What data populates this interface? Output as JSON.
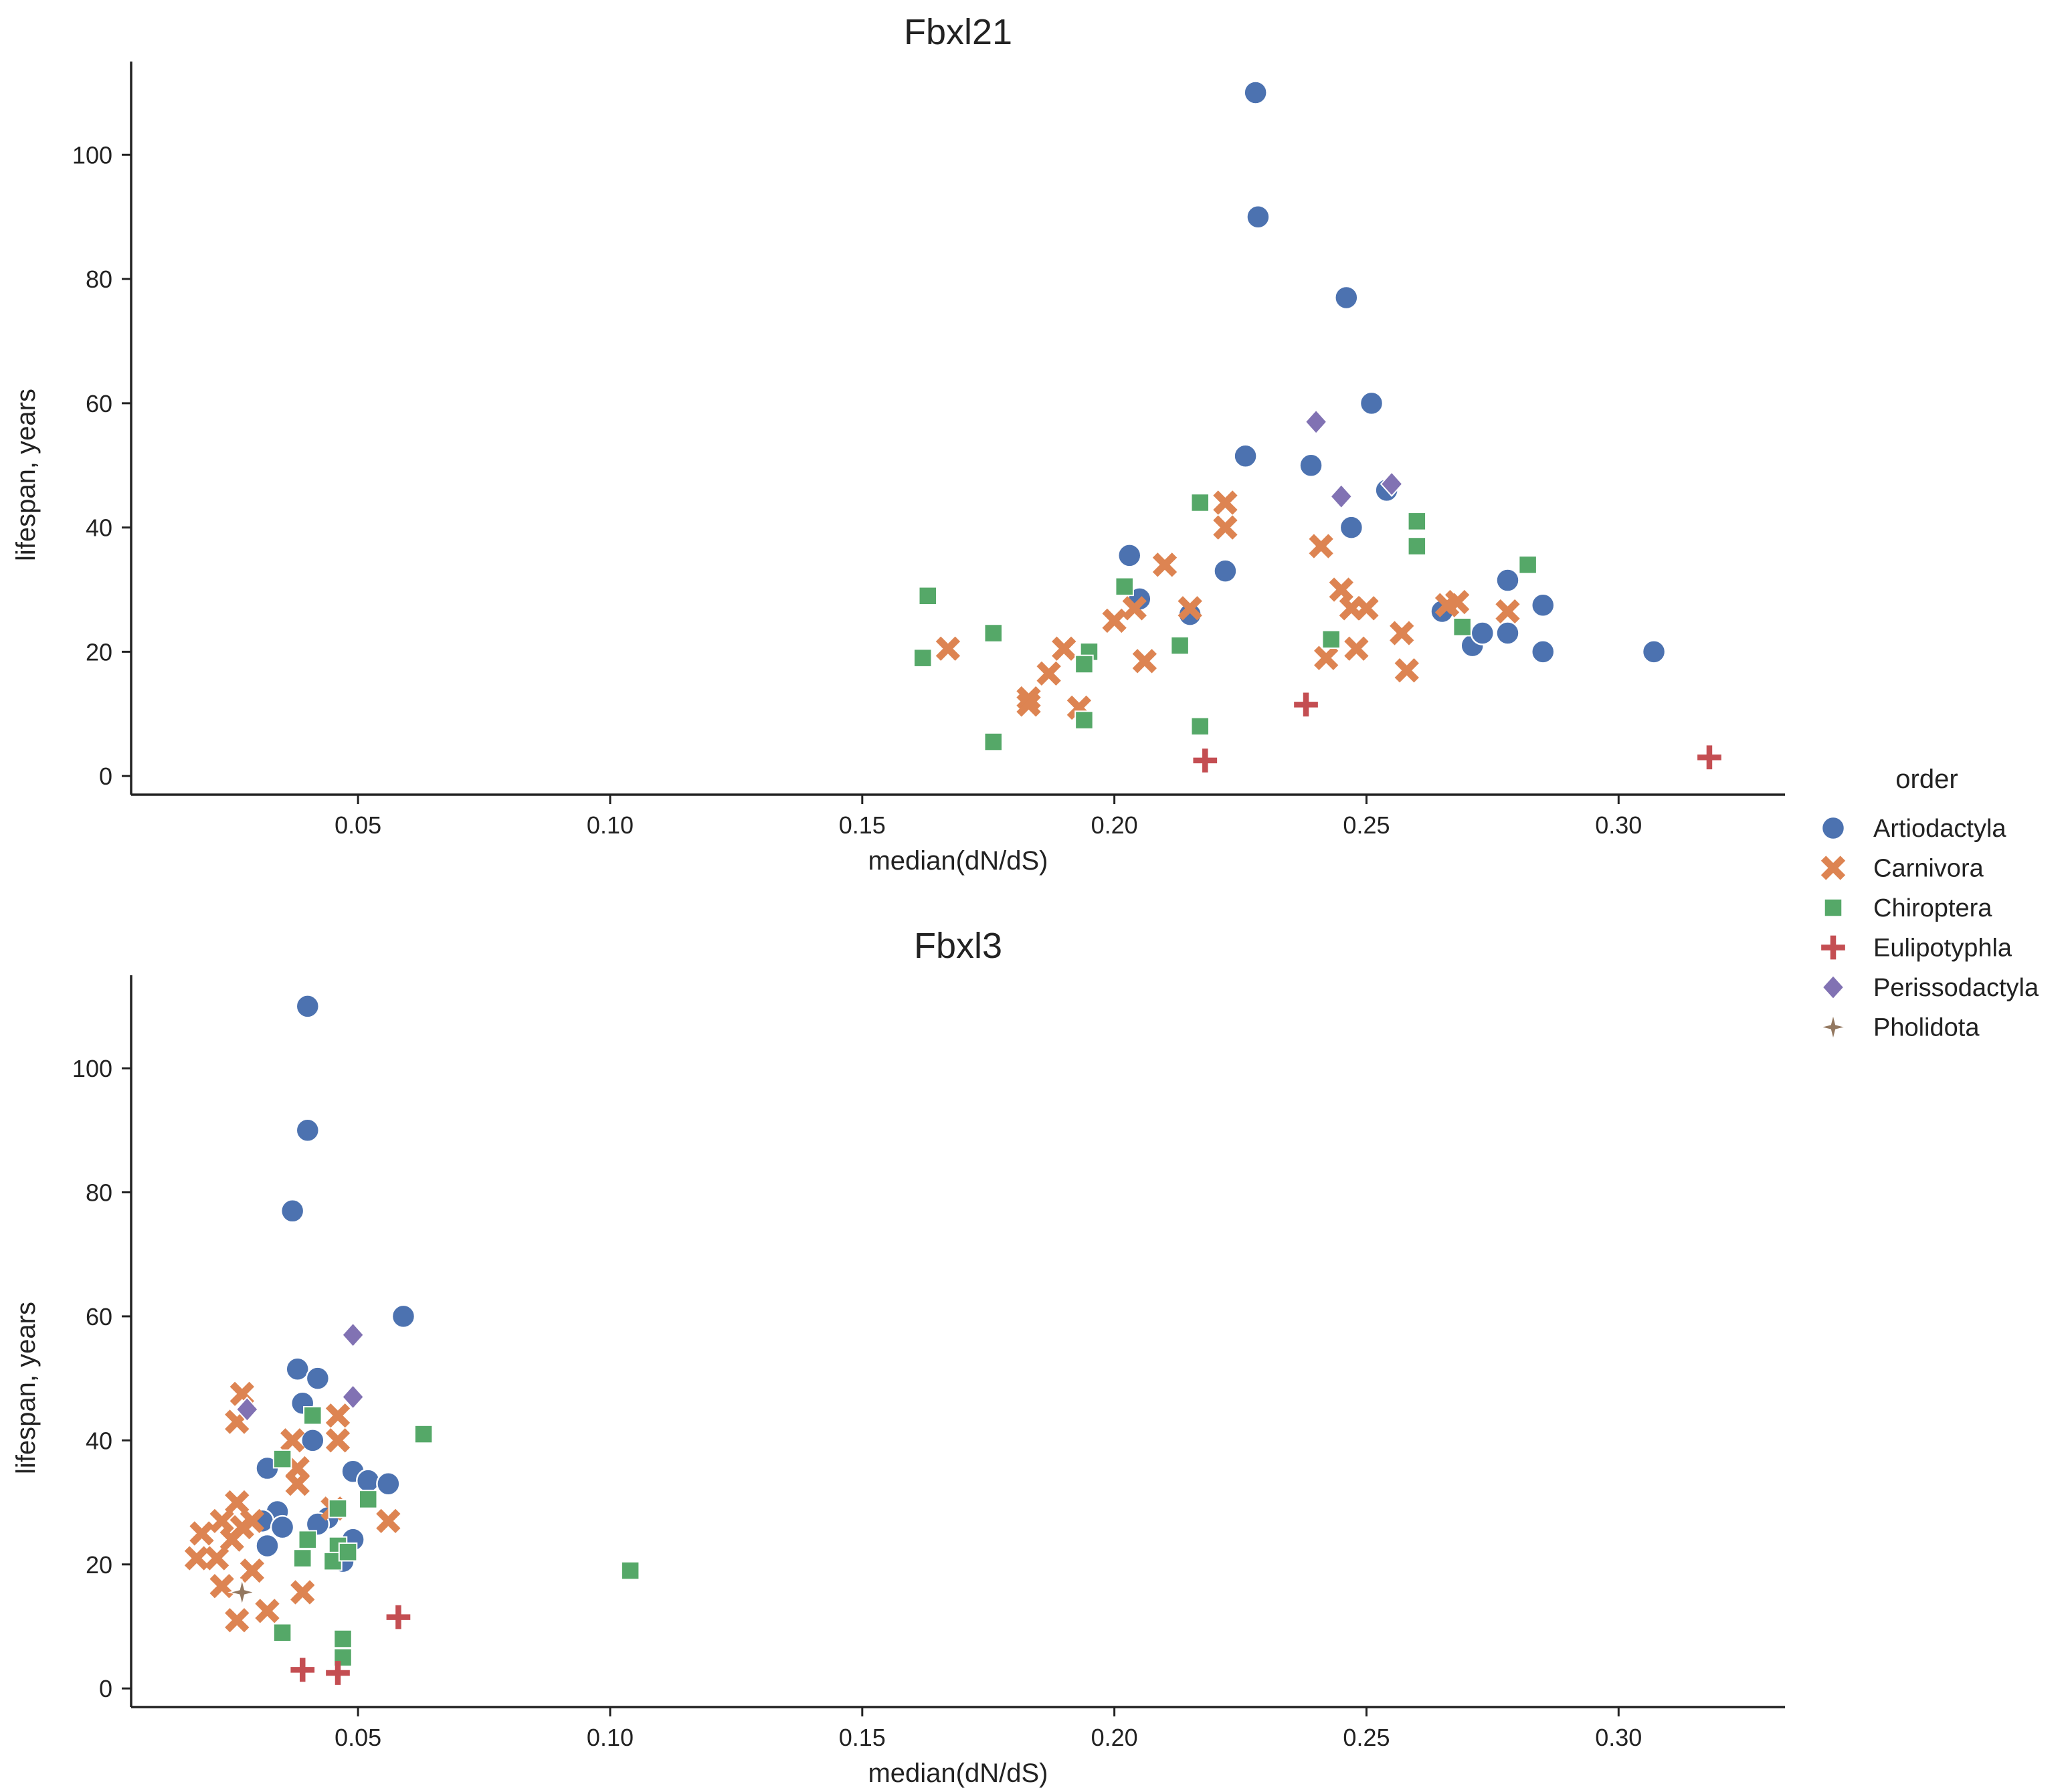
{
  "figure": {
    "legend_title": "order",
    "legend_position": "right"
  },
  "orders": [
    {
      "name": "Artiodactyla",
      "marker": "circle",
      "color": "#4c72b0"
    },
    {
      "name": "Carnivora",
      "marker": "x",
      "color": "#dd8452"
    },
    {
      "name": "Chiroptera",
      "marker": "square",
      "color": "#55a868"
    },
    {
      "name": "Eulipotyphla",
      "marker": "plus",
      "color": "#c44e52"
    },
    {
      "name": "Perissodactyla",
      "marker": "diamond",
      "color": "#8172b3"
    },
    {
      "name": "Pholidota",
      "marker": "star",
      "color": "#937860"
    }
  ],
  "chart_data": [
    {
      "type": "scatter",
      "title": "Fbxl21",
      "xlabel": "median(dN/dS)",
      "ylabel": "lifespan, years",
      "xlim": [
        0.005,
        0.333
      ],
      "ylim": [
        -3,
        115
      ],
      "xticks": [
        "0.05",
        "0.10",
        "0.15",
        "0.20",
        "0.25",
        "0.30"
      ],
      "yticks": [
        "0",
        "20",
        "40",
        "60",
        "80",
        "100"
      ],
      "grid": false,
      "series": [
        {
          "name": "Artiodactyla",
          "x": [
            0.228,
            0.2285,
            0.246,
            0.251,
            0.226,
            0.239,
            0.254,
            0.247,
            0.203,
            0.222,
            0.215,
            0.205,
            0.265,
            0.278,
            0.285,
            0.271,
            0.273,
            0.278,
            0.285,
            0.307
          ],
          "y": [
            110,
            90,
            77,
            60,
            51.5,
            50,
            46,
            40,
            35.5,
            33,
            26,
            28.5,
            26.5,
            31.5,
            27.5,
            21,
            23,
            23,
            20,
            20
          ]
        },
        {
          "name": "Carnivora",
          "x": [
            0.222,
            0.222,
            0.241,
            0.245,
            0.21,
            0.204,
            0.2,
            0.215,
            0.247,
            0.25,
            0.266,
            0.268,
            0.278,
            0.257,
            0.248,
            0.242,
            0.258,
            0.167,
            0.19,
            0.187,
            0.206,
            0.183,
            0.183,
            0.193
          ],
          "y": [
            44,
            40,
            37,
            30,
            34,
            27,
            25,
            27,
            27,
            27,
            27.5,
            28,
            26.5,
            23,
            20.5,
            19,
            17,
            20.5,
            20.5,
            16.5,
            18.5,
            12.5,
            11.5,
            11
          ]
        },
        {
          "name": "Chiroptera",
          "x": [
            0.217,
            0.26,
            0.26,
            0.282,
            0.202,
            0.163,
            0.176,
            0.213,
            0.195,
            0.194,
            0.162,
            0.243,
            0.269,
            0.176,
            0.194,
            0.217
          ],
          "y": [
            44,
            41,
            37,
            34,
            30.5,
            29,
            23,
            21,
            20,
            18,
            19,
            22,
            24,
            5.5,
            9,
            8
          ]
        },
        {
          "name": "Eulipotyphla",
          "x": [
            0.238,
            0.218,
            0.318
          ],
          "y": [
            11.5,
            2.5,
            3
          ]
        },
        {
          "name": "Perissodactyla",
          "x": [
            0.24,
            0.255,
            0.245
          ],
          "y": [
            57,
            47,
            45
          ]
        },
        {
          "name": "Pholidota",
          "x": [],
          "y": []
        }
      ]
    },
    {
      "type": "scatter",
      "title": "Fbxl3",
      "xlabel": "median(dN/dS)",
      "ylabel": "lifespan, years",
      "xlim": [
        0.005,
        0.333
      ],
      "ylim": [
        -3,
        115
      ],
      "xticks": [
        "0.05",
        "0.10",
        "0.15",
        "0.20",
        "0.25",
        "0.30"
      ],
      "yticks": [
        "0",
        "20",
        "40",
        "60",
        "80",
        "100"
      ],
      "grid": false,
      "series": [
        {
          "name": "Artiodactyla",
          "x": [
            0.04,
            0.04,
            0.037,
            0.059,
            0.038,
            0.042,
            0.039,
            0.041,
            0.032,
            0.049,
            0.052,
            0.056,
            0.034,
            0.031,
            0.035,
            0.044,
            0.042,
            0.032,
            0.049,
            0.047
          ],
          "y": [
            110,
            90,
            77,
            60,
            51.5,
            50,
            46,
            40,
            35.5,
            35,
            33.5,
            33,
            28.5,
            27,
            26,
            27.5,
            26.5,
            23,
            24,
            20.5
          ]
        },
        {
          "name": "Carnivora",
          "x": [
            0.027,
            0.026,
            0.037,
            0.046,
            0.046,
            0.038,
            0.038,
            0.023,
            0.026,
            0.027,
            0.029,
            0.019,
            0.022,
            0.025,
            0.018,
            0.029,
            0.023,
            0.039,
            0.032,
            0.026,
            0.056,
            0.045
          ],
          "y": [
            47.5,
            43,
            40,
            44,
            40,
            35.5,
            33,
            27,
            30,
            26,
            27,
            25,
            21,
            24,
            21,
            19,
            16.5,
            15.5,
            12.5,
            11,
            27,
            29
          ]
        },
        {
          "name": "Chiroptera",
          "x": [
            0.041,
            0.063,
            0.035,
            0.052,
            0.046,
            0.04,
            0.046,
            0.039,
            0.045,
            0.048,
            0.104,
            0.035,
            0.047,
            0.047
          ],
          "y": [
            44,
            41,
            37,
            30.5,
            29,
            24,
            23,
            21,
            20.5,
            22,
            19,
            9,
            8,
            5
          ]
        },
        {
          "name": "Eulipotyphla",
          "x": [
            0.058,
            0.039,
            0.046
          ],
          "y": [
            11.5,
            3,
            2.5
          ]
        },
        {
          "name": "Perissodactyla",
          "x": [
            0.049,
            0.049,
            0.028
          ],
          "y": [
            57,
            47,
            45
          ]
        },
        {
          "name": "Pholidota",
          "x": [
            0.027
          ],
          "y": [
            15.5
          ]
        }
      ]
    }
  ]
}
